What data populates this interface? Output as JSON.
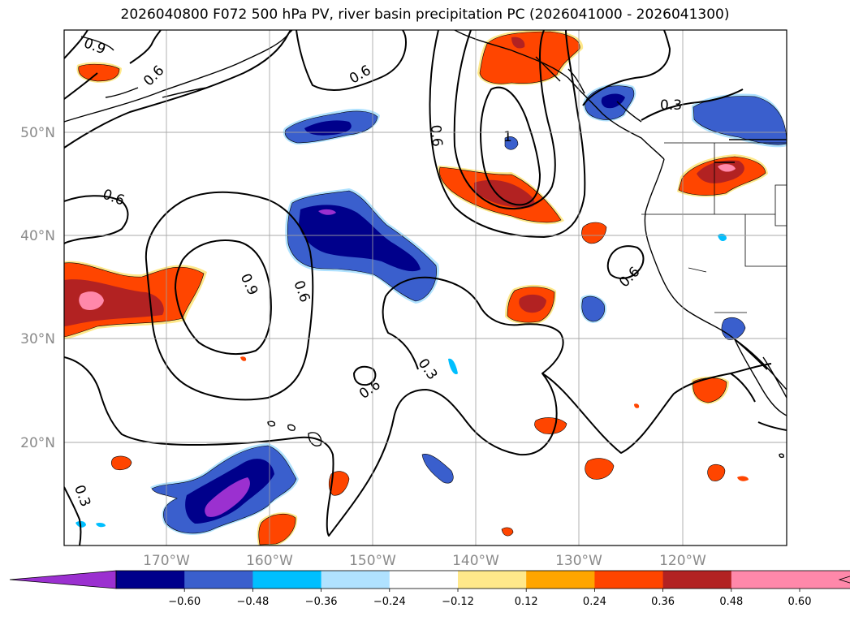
{
  "title": "2026040800 F072 500 hPa PV, river basin precipitation PC (2026041000 - 2026041300)",
  "map": {
    "lat_labels": [
      "50°N",
      "40°N",
      "30°N",
      "20°N"
    ],
    "lon_labels": [
      "170°W",
      "160°W",
      "150°W",
      "140°W",
      "130°W",
      "120°W"
    ],
    "contour_labels": [
      "0.9",
      "0.6",
      "0.6",
      "0.6",
      "0.3",
      "0.6",
      "0.9",
      "0.6",
      "0.6",
      "0.3",
      "0.6",
      "0.3",
      "1"
    ]
  },
  "colorbar": {
    "ticks": [
      "−0.60",
      "−0.48",
      "−0.36",
      "−0.24",
      "−0.12",
      "0.12",
      "0.24",
      "0.36",
      "0.48",
      "0.60"
    ],
    "colors": [
      "#9b30d0",
      "#00008b",
      "#3a5fcd",
      "#00bfff",
      "#b0e2ff",
      "#ffffff",
      "#ffe88a",
      "#ffa500",
      "#ff4500",
      "#b22222",
      "#ff88aa",
      "#ff88aa"
    ]
  },
  "colors": {
    "under": "#9b30d0",
    "over": "#ff88aa"
  }
}
